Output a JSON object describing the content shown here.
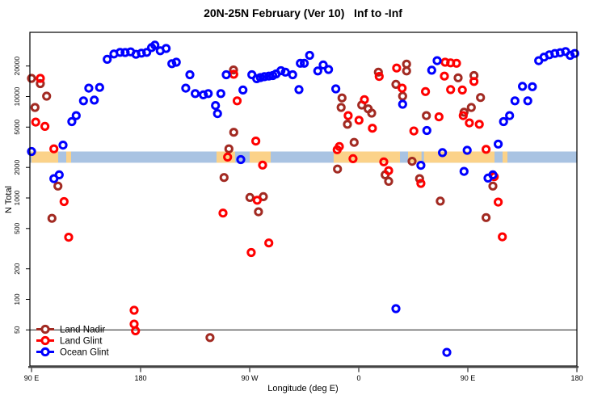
{
  "chart_data": {
    "type": "scatter",
    "title": "20N-25N February (Ver 10)   Inf to -Inf",
    "xlabel": "Longitude (deg E)",
    "ylabel": "N Total",
    "xlim": [
      88.7,
      540
    ],
    "ylim": [
      22,
      43000
    ],
    "y_scale": "log",
    "grid": false,
    "x_ticks": [
      {
        "lon": 90,
        "label": "90 E"
      },
      {
        "lon": 180,
        "label": "180"
      },
      {
        "lon": 270,
        "label": "90 W"
      },
      {
        "lon": 360,
        "label": "0"
      },
      {
        "lon": 450,
        "label": "90 E"
      },
      {
        "lon": 540,
        "label": "180"
      }
    ],
    "y_ticks": [
      50,
      100,
      200,
      500,
      1000,
      2000,
      5000,
      10000,
      20000
    ],
    "reference_line_n": 50,
    "map_band": {
      "n_top": 2870,
      "n_bottom": 2225,
      "ocean_color": "#A9C3E2",
      "land_color": "#FBD289",
      "land_segments_lon": [
        [
          90,
          112
        ],
        [
          118.7,
          122.7
        ],
        [
          242.7,
          258
        ],
        [
          270,
          287.3
        ],
        [
          339.3,
          394
        ],
        [
          400.7,
          411.8
        ],
        [
          413.8,
          472
        ],
        [
          478.7,
          482.7
        ]
      ]
    },
    "legend": {
      "position": "bottom-left",
      "items": [
        "Land Nadir",
        "Land Glint",
        "Ocean Glint"
      ]
    },
    "series": [
      {
        "name": "Land Nadir",
        "color": "#A22A22",
        "points": [
          [
            90,
            15100
          ],
          [
            97.3,
            13400
          ],
          [
            102.5,
            10100
          ],
          [
            92.9,
            7800
          ],
          [
            256.7,
            18300
          ],
          [
            256.9,
            4440
          ],
          [
            252.9,
            3050
          ],
          [
            111.8,
            1310
          ],
          [
            106.9,
            630
          ],
          [
            237.3,
            42
          ],
          [
            346.2,
            9700
          ],
          [
            345.5,
            7800
          ],
          [
            350.7,
            5330
          ],
          [
            362.5,
            8250
          ],
          [
            367.8,
            7570
          ],
          [
            370.7,
            6870
          ],
          [
            356.2,
            3530
          ],
          [
            376.2,
            17400
          ],
          [
            390.7,
            13200
          ],
          [
            399.5,
            20900
          ],
          [
            399.5,
            17900
          ],
          [
            396.2,
            10100
          ],
          [
            415.8,
            6480
          ],
          [
            442,
            15300
          ],
          [
            455.1,
            16100
          ],
          [
            446.9,
            7000
          ],
          [
            452.9,
            7800
          ],
          [
            460.5,
            9790
          ],
          [
            404,
            2300
          ],
          [
            248.9,
            1590
          ],
          [
            270.2,
            1010
          ],
          [
            281.3,
            1030
          ],
          [
            277.3,
            730
          ],
          [
            342.5,
            1930
          ],
          [
            381.8,
            1690
          ],
          [
            384.7,
            1460
          ],
          [
            410.2,
            1550
          ],
          [
            470.7,
            1310
          ],
          [
            427.3,
            930
          ],
          [
            465.1,
            640
          ]
        ]
      },
      {
        "name": "Land Glint",
        "color": "#FF0000",
        "points": [
          [
            97.3,
            15100
          ],
          [
            93.5,
            5600
          ],
          [
            101.1,
            5080
          ],
          [
            108.5,
            3050
          ],
          [
            256.9,
            16600
          ],
          [
            259.7,
            9080
          ],
          [
            275.1,
            3640
          ],
          [
            251.8,
            2530
          ],
          [
            280.7,
            2110
          ],
          [
            174.7,
            78
          ],
          [
            174.7,
            57
          ],
          [
            175.8,
            49
          ],
          [
            116.9,
            920
          ],
          [
            120.7,
            410
          ],
          [
            351.3,
            6480
          ],
          [
            360.2,
            5840
          ],
          [
            364.7,
            9320
          ],
          [
            371.3,
            4870
          ],
          [
            344,
            3220
          ],
          [
            376.9,
            15800
          ],
          [
            391.3,
            19100
          ],
          [
            395.8,
            12100
          ],
          [
            415.1,
            11200
          ],
          [
            426.2,
            6310
          ],
          [
            405.5,
            4580
          ],
          [
            431.3,
            21800
          ],
          [
            435.8,
            21500
          ],
          [
            440.7,
            21300
          ],
          [
            430.7,
            15900
          ],
          [
            435.8,
            11700
          ],
          [
            445.5,
            11600
          ],
          [
            455.1,
            14100
          ],
          [
            446.2,
            6480
          ],
          [
            451.3,
            5500
          ],
          [
            459.5,
            5330
          ],
          [
            342.2,
            2990
          ],
          [
            355.3,
            2440
          ],
          [
            380.7,
            2270
          ],
          [
            465.1,
            3020
          ],
          [
            276.2,
            950
          ],
          [
            248,
            710
          ],
          [
            285.8,
            360
          ],
          [
            271.3,
            290
          ],
          [
            384.7,
            1860
          ],
          [
            411.3,
            1390
          ],
          [
            471.8,
            1620
          ],
          [
            475.1,
            910
          ],
          [
            478.5,
            414
          ]
        ]
      },
      {
        "name": "Ocean Glint",
        "color": "#0000FF",
        "points": [
          [
            152.5,
            23300
          ],
          [
            158,
            26300
          ],
          [
            163.1,
            27300
          ],
          [
            167.3,
            27200
          ],
          [
            171.8,
            27600
          ],
          [
            176.2,
            26100
          ],
          [
            180.7,
            26800
          ],
          [
            185.1,
            27300
          ],
          [
            189.1,
            30400
          ],
          [
            191.8,
            32100
          ],
          [
            196.2,
            28300
          ],
          [
            201.1,
            29800
          ],
          [
            205.8,
            21100
          ],
          [
            209.5,
            21800
          ],
          [
            220.7,
            16400
          ],
          [
            217.3,
            12100
          ],
          [
            225.1,
            10700
          ],
          [
            231.8,
            10400
          ],
          [
            235.8,
            10700
          ],
          [
            241.8,
            8150
          ],
          [
            246.2,
            10700
          ],
          [
            243.5,
            6790
          ],
          [
            250.7,
            16400
          ],
          [
            271.8,
            16400
          ],
          [
            275.8,
            15000
          ],
          [
            278.9,
            15400
          ],
          [
            282.2,
            15700
          ],
          [
            285.8,
            15900
          ],
          [
            289.1,
            16100
          ],
          [
            291.8,
            16700
          ],
          [
            295.8,
            18000
          ],
          [
            299.5,
            17400
          ],
          [
            305.5,
            16400
          ],
          [
            311.8,
            21300
          ],
          [
            310.7,
            11700
          ],
          [
            264.5,
            11600
          ],
          [
            123.3,
            5660
          ],
          [
            126.9,
            6480
          ],
          [
            132.9,
            9080
          ],
          [
            141.8,
            9230
          ],
          [
            137.3,
            12100
          ],
          [
            146.2,
            12300
          ],
          [
            90,
            2870
          ],
          [
            116,
            3320
          ],
          [
            262.7,
            2390
          ],
          [
            319.5,
            25500
          ],
          [
            315.1,
            21300
          ],
          [
            326.2,
            17900
          ],
          [
            330.7,
            20500
          ],
          [
            335.1,
            18500
          ],
          [
            341.1,
            11900
          ],
          [
            396.2,
            8400
          ],
          [
            416.2,
            4630
          ],
          [
            424.7,
            22600
          ],
          [
            420.2,
            18200
          ],
          [
            475.1,
            3400
          ],
          [
            479.5,
            5660
          ],
          [
            484.5,
            6480
          ],
          [
            488.9,
            9080
          ],
          [
            495.1,
            12600
          ],
          [
            503.3,
            12500
          ],
          [
            499.5,
            9080
          ],
          [
            508.5,
            22600
          ],
          [
            512.9,
            24500
          ],
          [
            517.3,
            25800
          ],
          [
            521.8,
            26600
          ],
          [
            526.2,
            27100
          ],
          [
            530.7,
            27800
          ],
          [
            534.5,
            25500
          ],
          [
            538.2,
            26600
          ],
          [
            446.9,
            1830
          ],
          [
            466.7,
            1570
          ],
          [
            470.7,
            1690
          ],
          [
            411.3,
            2100
          ],
          [
            429.1,
            2800
          ],
          [
            449.5,
            2950
          ],
          [
            390.7,
            81
          ],
          [
            432.7,
            30
          ],
          [
            108.5,
            1550
          ],
          [
            112.9,
            1690
          ]
        ]
      }
    ]
  }
}
